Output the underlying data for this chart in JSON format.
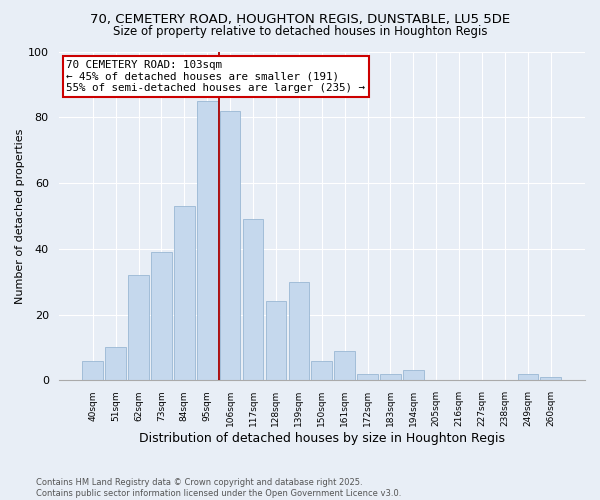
{
  "title": "70, CEMETERY ROAD, HOUGHTON REGIS, DUNSTABLE, LU5 5DE",
  "subtitle": "Size of property relative to detached houses in Houghton Regis",
  "xlabel": "Distribution of detached houses by size in Houghton Regis",
  "ylabel": "Number of detached properties",
  "categories": [
    "40sqm",
    "51sqm",
    "62sqm",
    "73sqm",
    "84sqm",
    "95sqm",
    "106sqm",
    "117sqm",
    "128sqm",
    "139sqm",
    "150sqm",
    "161sqm",
    "172sqm",
    "183sqm",
    "194sqm",
    "205sqm",
    "216sqm",
    "227sqm",
    "238sqm",
    "249sqm",
    "260sqm"
  ],
  "values": [
    6,
    10,
    32,
    39,
    53,
    85,
    82,
    49,
    24,
    30,
    6,
    9,
    2,
    2,
    3,
    0,
    0,
    0,
    0,
    2,
    1
  ],
  "bar_color": "#c5d8ed",
  "bar_edge_color": "#9ab8d4",
  "vline_x": 5.5,
  "vline_color": "#aa0000",
  "annotation_title": "70 CEMETERY ROAD: 103sqm",
  "annotation_line1": "← 45% of detached houses are smaller (191)",
  "annotation_line2": "55% of semi-detached houses are larger (235) →",
  "annotation_box_color": "#ffffff",
  "annotation_box_edgecolor": "#cc0000",
  "ylim": [
    0,
    100
  ],
  "yticks": [
    0,
    20,
    40,
    60,
    80,
    100
  ],
  "background_color": "#e8eef6",
  "plot_bg_color": "#e8eef6",
  "footer": "Contains HM Land Registry data © Crown copyright and database right 2025.\nContains public sector information licensed under the Open Government Licence v3.0.",
  "title_fontsize": 9.5,
  "subtitle_fontsize": 8.5,
  "xlabel_fontsize": 9,
  "ylabel_fontsize": 8
}
